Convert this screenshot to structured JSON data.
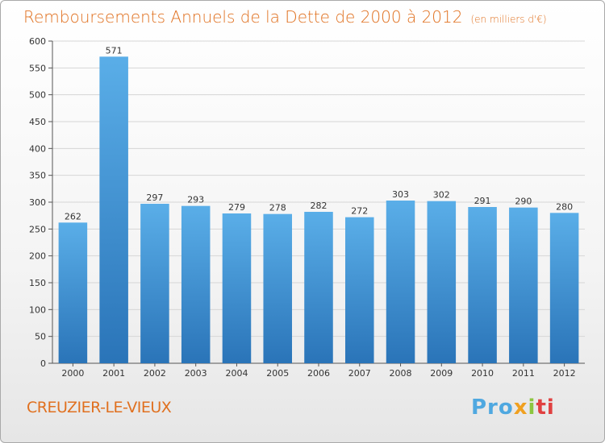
{
  "header": {
    "title": "Remboursements Annuels de la Dette de 2000 à 2012",
    "unit": "(en milliers d'€)"
  },
  "footer": {
    "city": "CREUZIER-LE-VIEUX",
    "logo": [
      "Pro",
      "x",
      "i",
      "ti"
    ]
  },
  "colors": {
    "bar_top": "#5aaee8",
    "bar_bottom": "#2a74b8",
    "title": "#e0701f",
    "grid": "#d6d6d6"
  },
  "chart_data": {
    "type": "bar",
    "categories": [
      "2000",
      "2001",
      "2002",
      "2003",
      "2004",
      "2005",
      "2006",
      "2007",
      "2008",
      "2009",
      "2010",
      "2011",
      "2012"
    ],
    "values": [
      262,
      571,
      297,
      293,
      279,
      278,
      282,
      272,
      303,
      302,
      291,
      290,
      280
    ],
    "ylim": [
      0,
      600
    ],
    "yticks": [
      0,
      50,
      100,
      150,
      200,
      250,
      300,
      350,
      400,
      450,
      500,
      550,
      600
    ],
    "grid": true
  }
}
